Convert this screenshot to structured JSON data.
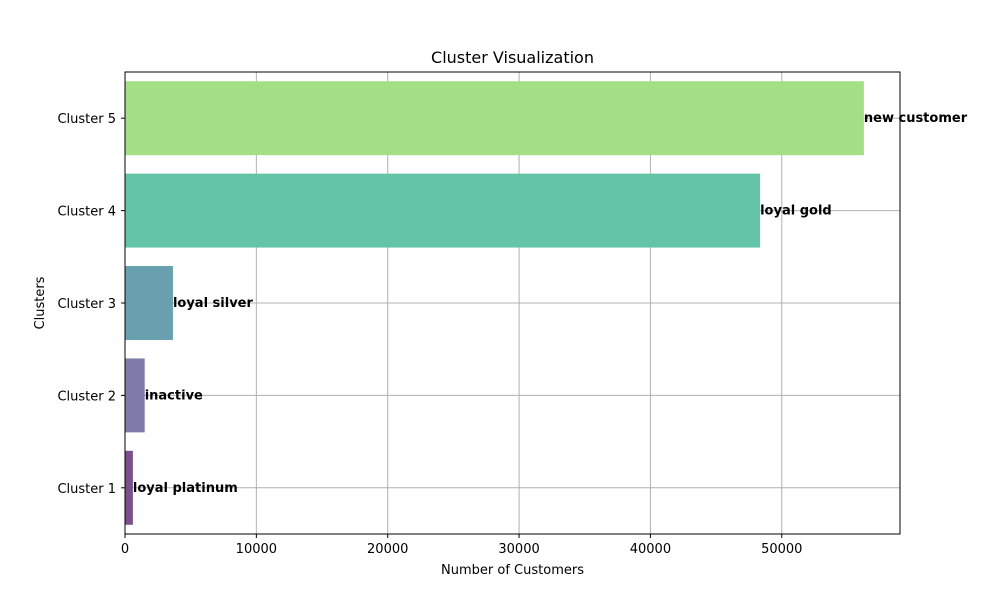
{
  "chart_data": {
    "type": "bar",
    "orientation": "horizontal",
    "title": "Cluster Visualization",
    "xlabel": "Number of Customers",
    "ylabel": "Clusters",
    "xlim": [
      0,
      59000
    ],
    "xticks": [
      0,
      10000,
      20000,
      30000,
      40000,
      50000
    ],
    "grid": true,
    "categories": [
      "Cluster 1",
      "Cluster 2",
      "Cluster 3",
      "Cluster 4",
      "Cluster 5"
    ],
    "values": [
      600,
      1500,
      3650,
      48350,
      56250
    ],
    "bar_labels": [
      "loyal platinum",
      "inactive",
      "loyal silver",
      "loyal gold",
      "new customer"
    ],
    "colors": [
      "#7b4e8c",
      "#7f7cac",
      "#68a0b0",
      "#64c4a8",
      "#a4df86"
    ]
  }
}
